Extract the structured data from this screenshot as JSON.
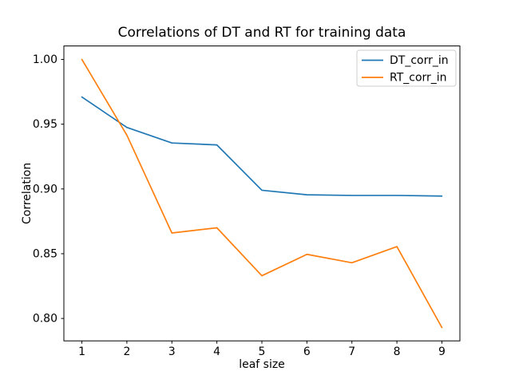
{
  "figure": {
    "background": "#ffffff"
  },
  "chart_data": {
    "type": "line",
    "title": "Correlations of DT and RT for training data",
    "xlabel": "leaf size",
    "ylabel": "Correlation",
    "x": [
      1,
      2,
      3,
      4,
      5,
      6,
      7,
      8,
      9
    ],
    "series": [
      {
        "name": "DT_corr_in",
        "color": "#1f77b4",
        "values": [
          0.971,
          0.9475,
          0.9355,
          0.934,
          0.899,
          0.8955,
          0.895,
          0.895,
          0.8945
        ]
      },
      {
        "name": "RT_corr_in",
        "color": "#ff7f0e",
        "values": [
          1.0,
          0.9415,
          0.866,
          0.87,
          0.833,
          0.8495,
          0.843,
          0.8555,
          0.793
        ]
      }
    ],
    "xticks": [
      1,
      2,
      3,
      4,
      5,
      6,
      7,
      8,
      9
    ],
    "yticks": [
      0.8,
      0.85,
      0.9,
      0.95,
      1.0
    ],
    "ytick_labels": [
      "0.80",
      "0.85",
      "0.90",
      "0.95",
      "1.00"
    ],
    "xlim": [
      0.6,
      9.4
    ],
    "ylim": [
      0.7827,
      1.0104
    ],
    "grid": false,
    "legend_position": "upper right",
    "legend_entries": [
      "DT_corr_in",
      "RT_corr_in"
    ],
    "axis_color": "#000000",
    "legend_border_color": "#cccccc"
  }
}
